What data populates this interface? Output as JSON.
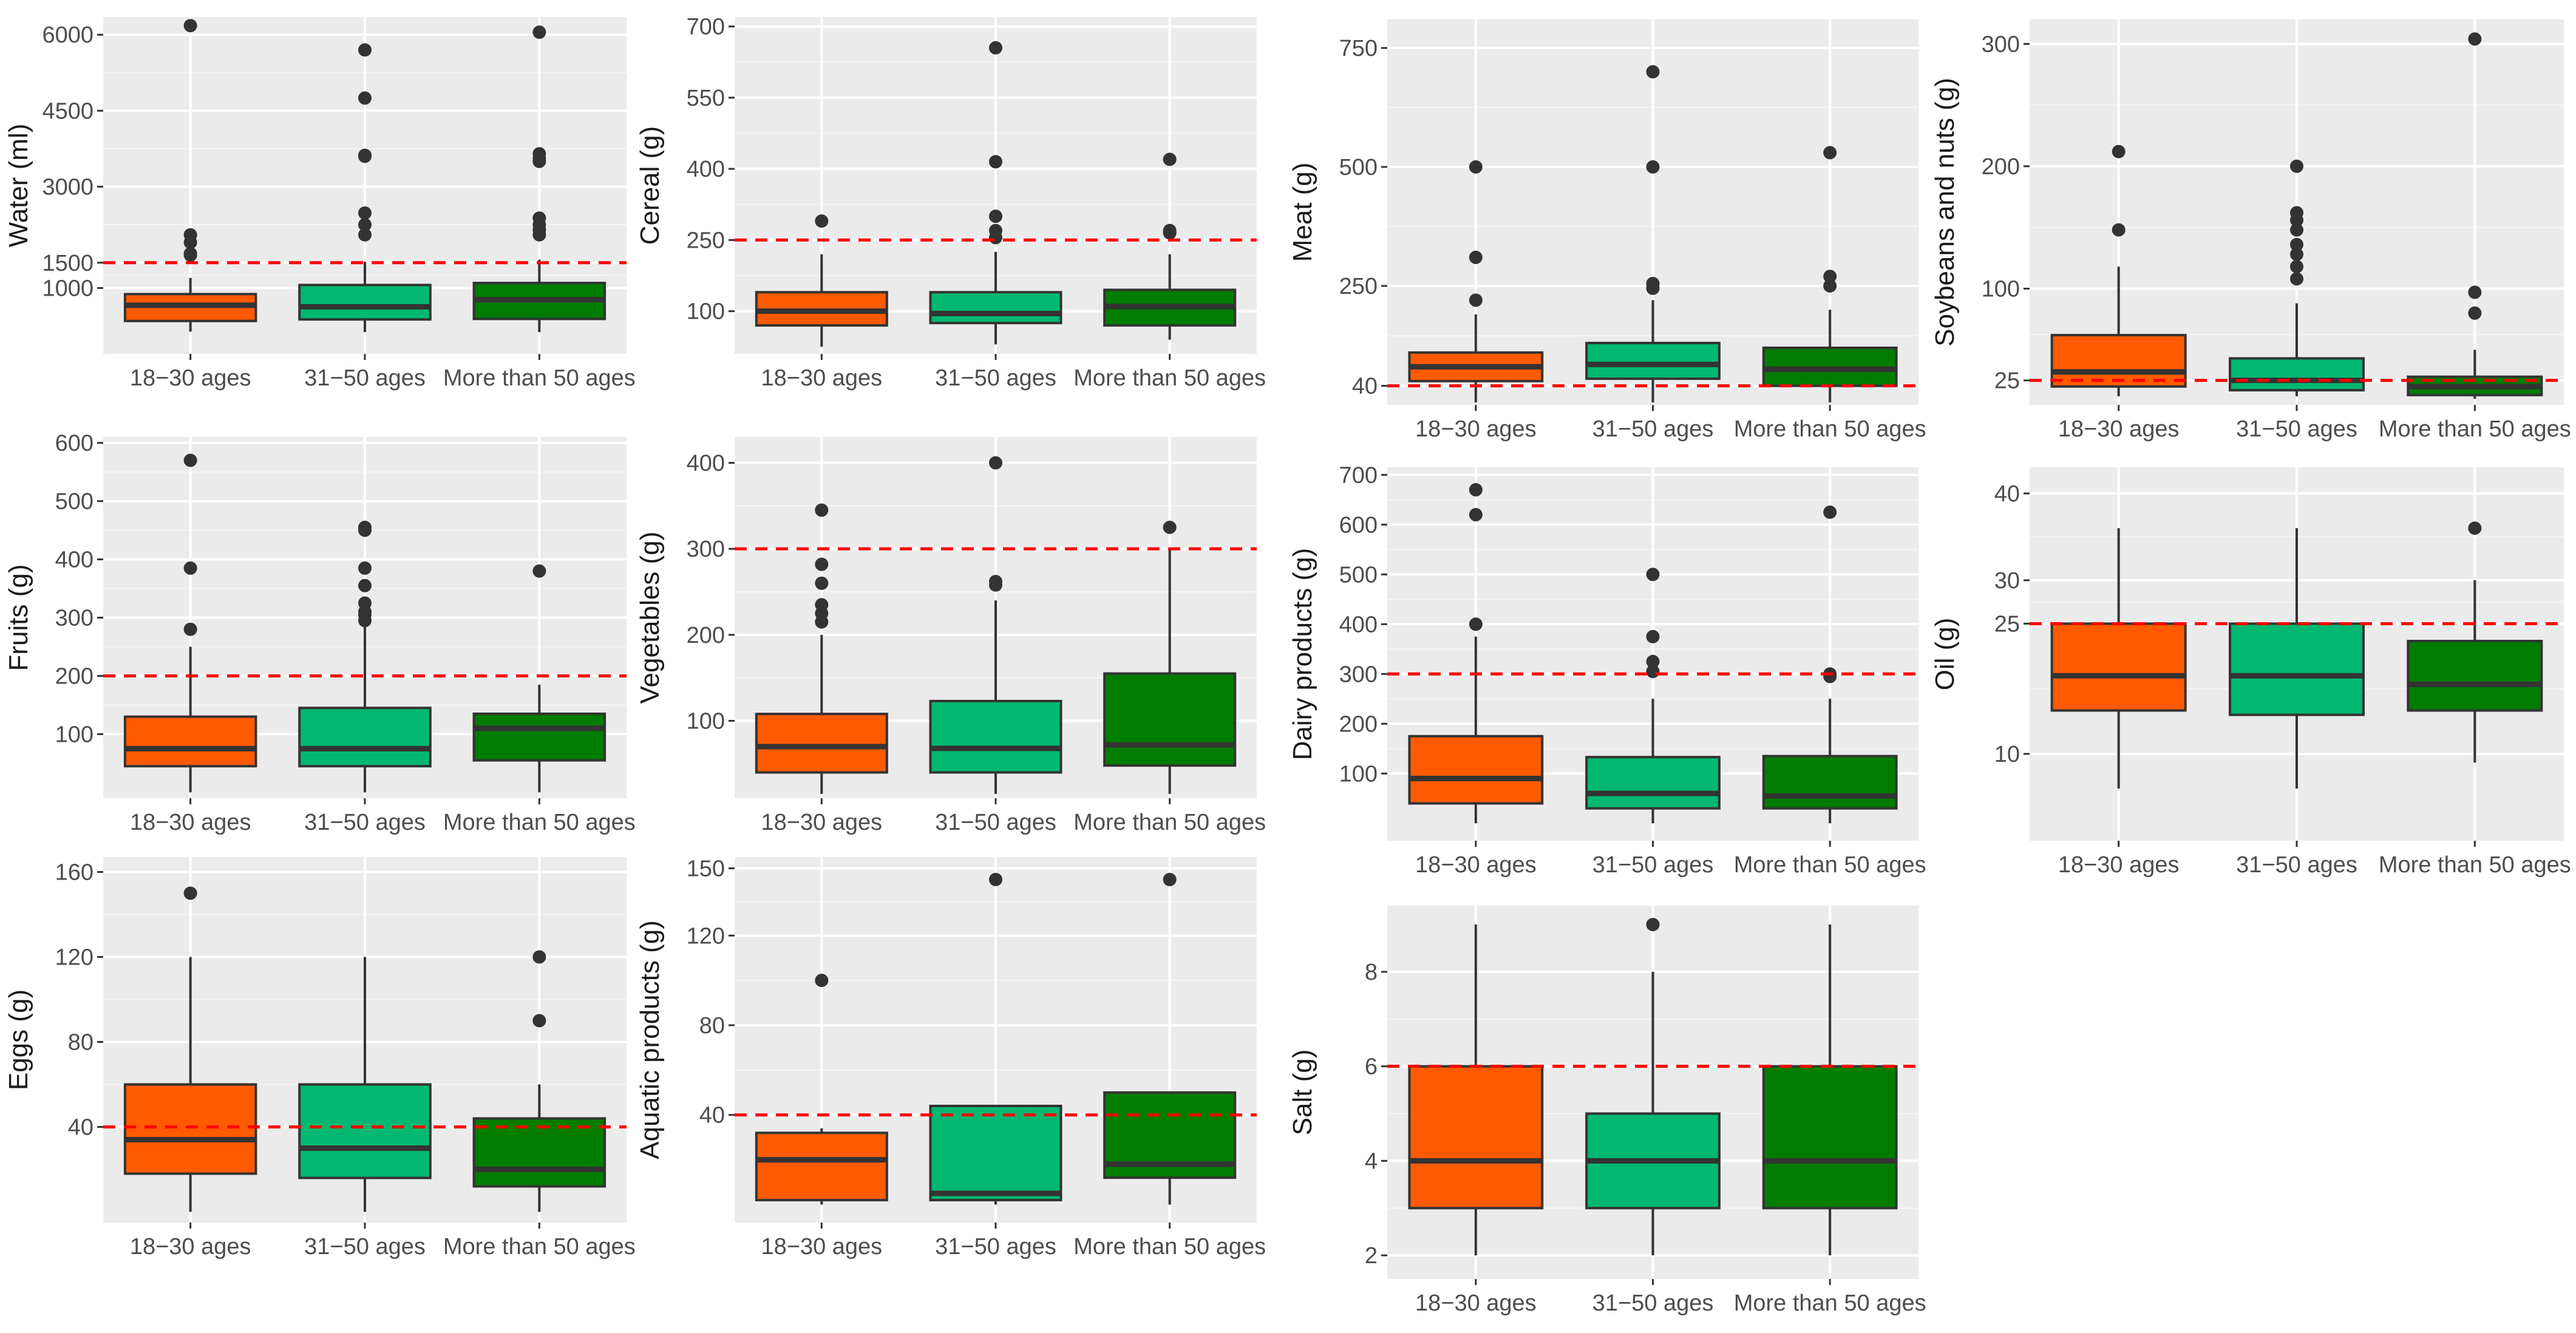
{
  "chart_data": [
    {
      "type": "box",
      "ylabel": "Water (ml)",
      "categories": [
        "18−30 ages",
        "31−50 ages",
        "More than 50 ages"
      ],
      "yticks": [
        1000,
        1500,
        3000,
        4500,
        6000
      ],
      "ylim": [
        -300,
        6350
      ],
      "reference_line": 1500,
      "boxes": [
        {
          "q1": 350,
          "median": 660,
          "q3": 880,
          "whisker_low": 140,
          "whisker_high": 1200,
          "outliers": [
            1650,
            1680,
            1900,
            2050,
            6180
          ]
        },
        {
          "q1": 380,
          "median": 630,
          "q3": 1060,
          "whisker_low": 130,
          "whisker_high": 1520,
          "outliers": [
            2050,
            2250,
            2480,
            3600,
            3620,
            4750,
            5700
          ]
        },
        {
          "q1": 390,
          "median": 770,
          "q3": 1100,
          "whisker_low": 130,
          "whisker_high": 1560,
          "outliers": [
            2050,
            2150,
            2250,
            2380,
            3500,
            3560,
            3650,
            6050
          ]
        }
      ]
    },
    {
      "type": "box",
      "ylabel": "Cereal (g)",
      "categories": [
        "18−30 ages",
        "31−50 ages",
        "More than 50 ages"
      ],
      "yticks": [
        100,
        250,
        400,
        550,
        700
      ],
      "ylim": [
        10,
        720
      ],
      "reference_line": 250,
      "boxes": [
        {
          "q1": 70,
          "median": 100,
          "q3": 140,
          "whisker_low": 25,
          "whisker_high": 220,
          "outliers": [
            290
          ]
        },
        {
          "q1": 75,
          "median": 95,
          "q3": 140,
          "whisker_low": 30,
          "whisker_high": 225,
          "outliers": [
            255,
            270,
            300,
            415,
            655
          ]
        },
        {
          "q1": 70,
          "median": 110,
          "q3": 145,
          "whisker_low": 40,
          "whisker_high": 220,
          "outliers": [
            265,
            270,
            420
          ]
        }
      ]
    },
    {
      "type": "box",
      "ylabel": "Meat (g)",
      "categories": [
        "18−30 ages",
        "31−50 ages",
        "More than 50 ages"
      ],
      "yticks": [
        40,
        250,
        500,
        750
      ],
      "ylim": [
        0,
        810
      ],
      "reference_line": 40,
      "boxes": [
        {
          "q1": 50,
          "median": 80,
          "q3": 110,
          "whisker_low": 5,
          "whisker_high": 190,
          "outliers": [
            220,
            310,
            500
          ]
        },
        {
          "q1": 55,
          "median": 85,
          "q3": 130,
          "whisker_low": 5,
          "whisker_high": 220,
          "outliers": [
            245,
            255,
            500,
            700
          ]
        },
        {
          "q1": 40,
          "median": 75,
          "q3": 120,
          "whisker_low": 5,
          "whisker_high": 200,
          "outliers": [
            250,
            270,
            530
          ]
        }
      ]
    },
    {
      "type": "box",
      "ylabel": "Soybeans and nuts (g)",
      "categories": [
        "18−30 ages",
        "31−50 ages",
        "More than 50 ages"
      ],
      "yticks": [
        25,
        100,
        200,
        300
      ],
      "ylim": [
        5,
        320
      ],
      "reference_line": 25,
      "boxes": [
        {
          "q1": 20,
          "median": 32,
          "q3": 62,
          "whisker_low": 12,
          "whisker_high": 118,
          "outliers": [
            148,
            212
          ]
        },
        {
          "q1": 17,
          "median": 25,
          "q3": 43,
          "whisker_low": 12,
          "whisker_high": 88,
          "outliers": [
            108,
            118,
            128,
            136,
            148,
            156,
            162,
            200
          ]
        },
        {
          "q1": 13,
          "median": 20,
          "q3": 28,
          "whisker_low": 10,
          "whisker_high": 50,
          "outliers": [
            80,
            97,
            304
          ]
        }
      ]
    },
    {
      "type": "box",
      "ylabel": "Fruits (g)",
      "categories": [
        "18−30 ages",
        "31−50 ages",
        "More than 50 ages"
      ],
      "yticks": [
        100,
        200,
        300,
        400,
        500,
        600
      ],
      "ylim": [
        -10,
        610
      ],
      "reference_line": 200,
      "boxes": [
        {
          "q1": 45,
          "median": 75,
          "q3": 130,
          "whisker_low": 0,
          "whisker_high": 250,
          "outliers": [
            280,
            385,
            570
          ]
        },
        {
          "q1": 45,
          "median": 75,
          "q3": 145,
          "whisker_low": 0,
          "whisker_high": 285,
          "outliers": [
            295,
            305,
            310,
            325,
            355,
            385,
            450,
            455
          ]
        },
        {
          "q1": 55,
          "median": 110,
          "q3": 135,
          "whisker_low": 0,
          "whisker_high": 185,
          "outliers": [
            380
          ]
        }
      ]
    },
    {
      "type": "box",
      "ylabel": "Vegetables (g)",
      "categories": [
        "18−30 ages",
        "31−50 ages",
        "More than 50 ages"
      ],
      "yticks": [
        100,
        200,
        300,
        400
      ],
      "ylim": [
        10,
        430
      ],
      "reference_line": 300,
      "boxes": [
        {
          "q1": 40,
          "median": 70,
          "q3": 108,
          "whisker_low": 15,
          "whisker_high": 200,
          "outliers": [
            215,
            225,
            235,
            260,
            282,
            345
          ]
        },
        {
          "q1": 40,
          "median": 68,
          "q3": 123,
          "whisker_low": 15,
          "whisker_high": 240,
          "outliers": [
            258,
            262,
            400
          ]
        },
        {
          "q1": 48,
          "median": 72,
          "q3": 155,
          "whisker_low": 15,
          "whisker_high": 300,
          "outliers": [
            325
          ]
        }
      ]
    },
    {
      "type": "box",
      "ylabel": "Dairy products (g)",
      "categories": [
        "18−30 ages",
        "31−50 ages",
        "More than 50 ages"
      ],
      "yticks": [
        100,
        200,
        300,
        400,
        500,
        600,
        700
      ],
      "ylim": [
        -35,
        715
      ],
      "reference_line": 300,
      "boxes": [
        {
          "q1": 40,
          "median": 90,
          "q3": 175,
          "whisker_low": 0,
          "whisker_high": 375,
          "outliers": [
            400,
            620,
            670
          ]
        },
        {
          "q1": 30,
          "median": 60,
          "q3": 133,
          "whisker_low": 0,
          "whisker_high": 250,
          "outliers": [
            305,
            325,
            375,
            500
          ]
        },
        {
          "q1": 30,
          "median": 55,
          "q3": 135,
          "whisker_low": 0,
          "whisker_high": 250,
          "outliers": [
            295,
            300,
            625
          ]
        }
      ]
    },
    {
      "type": "box",
      "ylabel": "Oil (g)",
      "categories": [
        "18−30 ages",
        "31−50 ages",
        "More than 50 ages"
      ],
      "yticks": [
        10,
        25,
        30,
        40
      ],
      "ylim": [
        0,
        43
      ],
      "reference_line": 25,
      "boxes": [
        {
          "q1": 15,
          "median": 19,
          "q3": 25,
          "whisker_low": 6,
          "whisker_high": 36,
          "outliers": []
        },
        {
          "q1": 14.5,
          "median": 19,
          "q3": 25,
          "whisker_low": 6,
          "whisker_high": 36,
          "outliers": []
        },
        {
          "q1": 15,
          "median": 18,
          "q3": 23,
          "whisker_low": 9,
          "whisker_high": 30,
          "outliers": [
            36
          ]
        }
      ]
    },
    {
      "type": "box",
      "ylabel": "Eggs (g)",
      "categories": [
        "18−30 ages",
        "31−50 ages",
        "More than 50 ages"
      ],
      "yticks": [
        40,
        80,
        120,
        160
      ],
      "ylim": [
        -5,
        167
      ],
      "reference_line": 40,
      "boxes": [
        {
          "q1": 18,
          "median": 34,
          "q3": 60,
          "whisker_low": 0,
          "whisker_high": 120,
          "outliers": [
            150
          ]
        },
        {
          "q1": 16,
          "median": 30,
          "q3": 60,
          "whisker_low": 0,
          "whisker_high": 120,
          "outliers": []
        },
        {
          "q1": 12,
          "median": 20,
          "q3": 44,
          "whisker_low": 0,
          "whisker_high": 60,
          "outliers": [
            90,
            120
          ]
        }
      ]
    },
    {
      "type": "box",
      "ylabel": "Aquatic products (g)",
      "categories": [
        "18−30 ages",
        "31−50 ages",
        "More than 50 ages"
      ],
      "yticks": [
        40,
        80,
        120,
        150
      ],
      "ylim": [
        -8,
        155
      ],
      "reference_line": 40,
      "boxes": [
        {
          "q1": 2,
          "median": 20,
          "q3": 32,
          "whisker_low": 0,
          "whisker_high": 34,
          "outliers": [
            100
          ]
        },
        {
          "q1": 2,
          "median": 5,
          "q3": 44,
          "whisker_low": 0,
          "whisker_high": 44,
          "outliers": [
            145
          ]
        },
        {
          "q1": 12,
          "median": 18,
          "q3": 50,
          "whisker_low": 0,
          "whisker_high": 50,
          "outliers": [
            145
          ]
        }
      ]
    },
    {
      "type": "box",
      "ylabel": "Salt (g)",
      "categories": [
        "18−30 ages",
        "31−50 ages",
        "More than 50 ages"
      ],
      "yticks": [
        2,
        4,
        6,
        8
      ],
      "ylim": [
        1.5,
        9.4
      ],
      "reference_line": 6,
      "boxes": [
        {
          "q1": 3,
          "median": 4,
          "q3": 6,
          "whisker_low": 2,
          "whisker_high": 9,
          "outliers": []
        },
        {
          "q1": 3,
          "median": 4,
          "q3": 5,
          "whisker_low": 2,
          "whisker_high": 8,
          "outliers": [
            9
          ]
        },
        {
          "q1": 3,
          "median": 4,
          "q3": 6,
          "whisker_low": 2,
          "whisker_high": 9,
          "outliers": []
        }
      ]
    }
  ],
  "colors": {
    "group1": "#ff5a00",
    "group2": "#00b871",
    "group3": "#007c00",
    "reference": "#ff0000"
  }
}
